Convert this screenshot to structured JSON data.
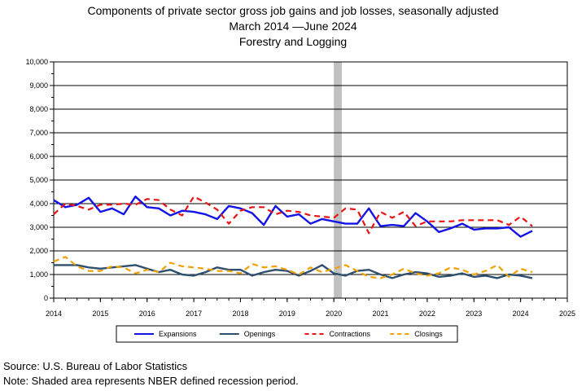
{
  "chart_data": {
    "type": "line",
    "title_lines": [
      "Components of private sector gross job gains and job losses, seasonally adjusted",
      "March 2014 —June 2024",
      "Forestry and Logging"
    ],
    "xlabel": "",
    "ylabel": "",
    "xlim": [
      2014,
      2025
    ],
    "ylim": [
      0,
      10000
    ],
    "x_ticks": [
      "2014",
      "2015",
      "2016",
      "2017",
      "2018",
      "2019",
      "2020",
      "2021",
      "2022",
      "2023",
      "2024",
      "2025"
    ],
    "y_ticks": [
      "0",
      "1,000",
      "2,000",
      "3,000",
      "4,000",
      "5,000",
      "6,000",
      "7,000",
      "8,000",
      "9,000",
      "10,000"
    ],
    "grid": "horizontal",
    "legend_position": "bottom",
    "recession_band": [
      2020.0,
      2020.17
    ],
    "recession_color": "#c0c0c0",
    "series": [
      {
        "name": "Expansions",
        "color": "#1414e6",
        "dash": "solid",
        "x": [
          2014.0,
          2014.25,
          2014.5,
          2014.75,
          2015.0,
          2015.25,
          2015.5,
          2015.75,
          2016.0,
          2016.25,
          2016.5,
          2016.75,
          2017.0,
          2017.25,
          2017.5,
          2017.75,
          2018.0,
          2018.25,
          2018.5,
          2018.75,
          2019.0,
          2019.25,
          2019.5,
          2019.75,
          2020.0,
          2020.25,
          2020.5,
          2020.75,
          2021.0,
          2021.25,
          2021.5,
          2021.75,
          2022.0,
          2022.25,
          2022.5,
          2022.75,
          2023.0,
          2023.25,
          2023.5,
          2023.75,
          2024.0,
          2024.25
        ],
        "y": [
          4150,
          3850,
          3950,
          4250,
          3650,
          3800,
          3550,
          4300,
          3850,
          3800,
          3500,
          3700,
          3650,
          3550,
          3350,
          3900,
          3800,
          3600,
          3100,
          3900,
          3450,
          3550,
          3150,
          3350,
          3250,
          3150,
          3150,
          3800,
          3050,
          3100,
          3050,
          3600,
          3250,
          2800,
          2950,
          3150,
          2900,
          2950,
          2950,
          3000,
          2600,
          2850
        ]
      },
      {
        "name": "Openings",
        "color": "#2f4f6f",
        "dash": "solid",
        "x": [
          2014.0,
          2014.25,
          2014.5,
          2014.75,
          2015.0,
          2015.25,
          2015.5,
          2015.75,
          2016.0,
          2016.25,
          2016.5,
          2016.75,
          2017.0,
          2017.25,
          2017.5,
          2017.75,
          2018.0,
          2018.25,
          2018.5,
          2018.75,
          2019.0,
          2019.25,
          2019.5,
          2019.75,
          2020.0,
          2020.25,
          2020.5,
          2020.75,
          2021.0,
          2021.25,
          2021.5,
          2021.75,
          2022.0,
          2022.25,
          2022.5,
          2022.75,
          2023.0,
          2023.25,
          2023.5,
          2023.75,
          2024.0,
          2024.25
        ],
        "y": [
          1400,
          1400,
          1400,
          1300,
          1250,
          1300,
          1350,
          1400,
          1250,
          1100,
          1200,
          1000,
          950,
          1100,
          1300,
          1200,
          1200,
          950,
          1100,
          1200,
          1150,
          950,
          1150,
          1400,
          1050,
          950,
          1150,
          1200,
          1000,
          850,
          1000,
          1100,
          1050,
          900,
          950,
          1050,
          900,
          950,
          850,
          1000,
          950,
          850
        ]
      },
      {
        "name": "Contractions",
        "color": "#e81414",
        "dash": "dashed",
        "x": [
          2014.0,
          2014.25,
          2014.5,
          2014.75,
          2015.0,
          2015.25,
          2015.5,
          2015.75,
          2016.0,
          2016.25,
          2016.5,
          2016.75,
          2017.0,
          2017.25,
          2017.5,
          2017.75,
          2018.0,
          2018.25,
          2018.5,
          2018.75,
          2019.0,
          2019.25,
          2019.5,
          2019.75,
          2020.0,
          2020.25,
          2020.5,
          2020.75,
          2021.0,
          2021.25,
          2021.5,
          2021.75,
          2022.0,
          2022.25,
          2022.5,
          2022.75,
          2023.0,
          2023.25,
          2023.5,
          2023.75,
          2024.0,
          2024.25
        ],
        "y": [
          3550,
          4000,
          3900,
          3750,
          3950,
          3950,
          4000,
          3950,
          4200,
          4150,
          3750,
          3500,
          4300,
          4050,
          3750,
          3150,
          3700,
          3850,
          3850,
          3550,
          3700,
          3650,
          3500,
          3450,
          3400,
          3800,
          3750,
          2750,
          3650,
          3400,
          3650,
          3050,
          3250,
          3250,
          3250,
          3300,
          3300,
          3300,
          3300,
          3100,
          3450,
          3050
        ]
      },
      {
        "name": "Closings",
        "color": "#f0a000",
        "dash": "dashed",
        "x": [
          2014.0,
          2014.25,
          2014.5,
          2014.75,
          2015.0,
          2015.25,
          2015.5,
          2015.75,
          2016.0,
          2016.25,
          2016.5,
          2016.75,
          2017.0,
          2017.25,
          2017.5,
          2017.75,
          2018.0,
          2018.25,
          2018.5,
          2018.75,
          2019.0,
          2019.25,
          2019.5,
          2019.75,
          2020.0,
          2020.25,
          2020.5,
          2020.75,
          2021.0,
          2021.25,
          2021.5,
          2021.75,
          2022.0,
          2022.25,
          2022.5,
          2022.75,
          2023.0,
          2023.25,
          2023.5,
          2023.75,
          2024.0,
          2024.25
        ],
        "y": [
          1550,
          1750,
          1350,
          1150,
          1150,
          1350,
          1300,
          1050,
          1200,
          1100,
          1500,
          1350,
          1300,
          1250,
          1150,
          1150,
          1050,
          1450,
          1300,
          1350,
          1200,
          1000,
          1300,
          1100,
          1250,
          1400,
          1150,
          900,
          850,
          1000,
          1250,
          1050,
          950,
          1050,
          1300,
          1200,
          1000,
          1150,
          1400,
          900,
          1250,
          1100
        ]
      }
    ]
  },
  "footer": {
    "source": "Source: U.S. Bureau of Labor Statistics",
    "note": "Note: Shaded area represents NBER defined recession period."
  }
}
